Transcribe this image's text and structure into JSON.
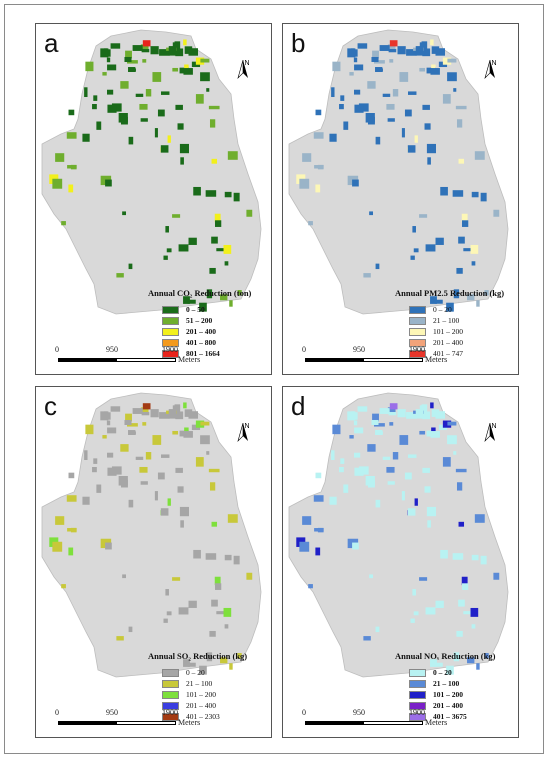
{
  "panels": [
    {
      "letter": "a",
      "legend_title": "Annual CO₂ Reduction (ton)",
      "classes": [
        {
          "label": "0 – 50",
          "color": "#1a6b1a",
          "bold": true
        },
        {
          "label": "51 – 200",
          "color": "#6fae2e",
          "bold": true
        },
        {
          "label": "201 – 400",
          "color": "#f2f01c",
          "bold": true
        },
        {
          "label": "401 – 800",
          "color": "#f39a1e",
          "bold": true
        },
        {
          "label": "801 – 1664",
          "color": "#e8231b",
          "bold": true
        }
      ]
    },
    {
      "letter": "b",
      "legend_title": "Annual PM2.5 Reduction (kg)",
      "classes": [
        {
          "label": "0 – 20",
          "color": "#2f72b8",
          "bold": false
        },
        {
          "label": "21 – 100",
          "color": "#9ab4c8",
          "bold": false
        },
        {
          "label": "101 – 200",
          "color": "#fdf7b6",
          "bold": false
        },
        {
          "label": "201 – 400",
          "color": "#f2a37a",
          "bold": false
        },
        {
          "label": "401 – 747",
          "color": "#e8352a",
          "bold": false
        }
      ]
    },
    {
      "letter": "c",
      "legend_title": "Annual SO₂ Reduction (kg)",
      "classes": [
        {
          "label": "0 – 20",
          "color": "#a6a6a6",
          "bold": false
        },
        {
          "label": "21 – 100",
          "color": "#c8c83a",
          "bold": false
        },
        {
          "label": "101 – 200",
          "color": "#7ee03c",
          "bold": false
        },
        {
          "label": "201 – 400",
          "color": "#3b3ee0",
          "bold": false
        },
        {
          "label": "401 – 2303",
          "color": "#a33a12",
          "bold": false
        }
      ]
    },
    {
      "letter": "d",
      "legend_title": "Annual NOₓ Reduction (kg)",
      "classes": [
        {
          "label": "0 – 20",
          "color": "#b8f2f2",
          "bold": true
        },
        {
          "label": "21 – 100",
          "color": "#5a8ad6",
          "bold": true
        },
        {
          "label": "101 – 200",
          "color": "#2020c8",
          "bold": true
        },
        {
          "label": "201 – 400",
          "color": "#7a20c8",
          "bold": true
        },
        {
          "label": "401 – 3675",
          "color": "#9b6ee8",
          "bold": true
        }
      ]
    }
  ],
  "scale": {
    "ticks": [
      "0",
      "950",
      "1900"
    ],
    "units": "Meters"
  },
  "north_label": "N",
  "colors": {
    "boundary_fill": "#d9d9d9",
    "boundary_stroke": "#bdbdbd"
  }
}
